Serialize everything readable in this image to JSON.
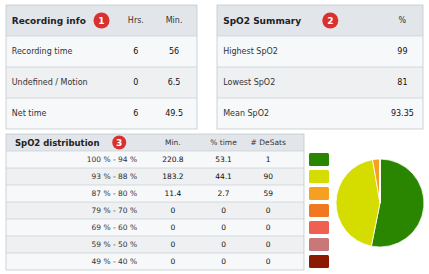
{
  "chart_data": [
    {
      "type": "table",
      "title": "Recording info",
      "categories": [
        "Recording time",
        "Undefined / Motion",
        "Net time"
      ],
      "series": [
        {
          "name": "Hrs.",
          "values": [
            6,
            0,
            6
          ]
        },
        {
          "name": "Min.",
          "values": [
            56,
            6.5,
            49.5
          ]
        }
      ],
      "annotations": [
        "1"
      ]
    },
    {
      "type": "table",
      "title": "SpO2 Summary",
      "categories": [
        "Highest SpO2",
        "Lowest SpO2",
        "Mean SpO2"
      ],
      "series": [
        {
          "name": "%",
          "values": [
            99,
            81,
            93.35
          ]
        }
      ],
      "annotations": [
        "2"
      ]
    },
    {
      "type": "table",
      "title": "SpO2 distribution",
      "categories": [
        "100 % - 94 %",
        "93 % - 88 %",
        "87 % - 80 %",
        "79 % - 70 %",
        "69 % - 60 %",
        "59 % - 50 %",
        "49 % - 40 %"
      ],
      "series": [
        {
          "name": "Min.",
          "values": [
            220.8,
            183.2,
            11.4,
            0,
            0,
            0,
            0
          ]
        },
        {
          "name": "% time",
          "values": [
            53.1,
            44.1,
            2.7,
            0,
            0,
            0,
            0
          ]
        },
        {
          "name": "# DeSats",
          "values": [
            1,
            90,
            59,
            0,
            0,
            0,
            0
          ]
        }
      ],
      "colors": [
        "#2a8500",
        "#d4dc00",
        "#f5a020",
        "#f07820",
        "#f06050",
        "#c87878",
        "#8b1a00"
      ],
      "annotations": [
        "3"
      ]
    },
    {
      "type": "pie",
      "values": [
        53.1,
        44.1,
        2.7,
        0.001,
        0.001,
        0.001,
        0.001
      ],
      "colors": [
        "#2a8500",
        "#d4dc00",
        "#f5a020",
        "#f07820",
        "#f06050",
        "#c87878",
        "#8b1a00"
      ]
    }
  ]
}
